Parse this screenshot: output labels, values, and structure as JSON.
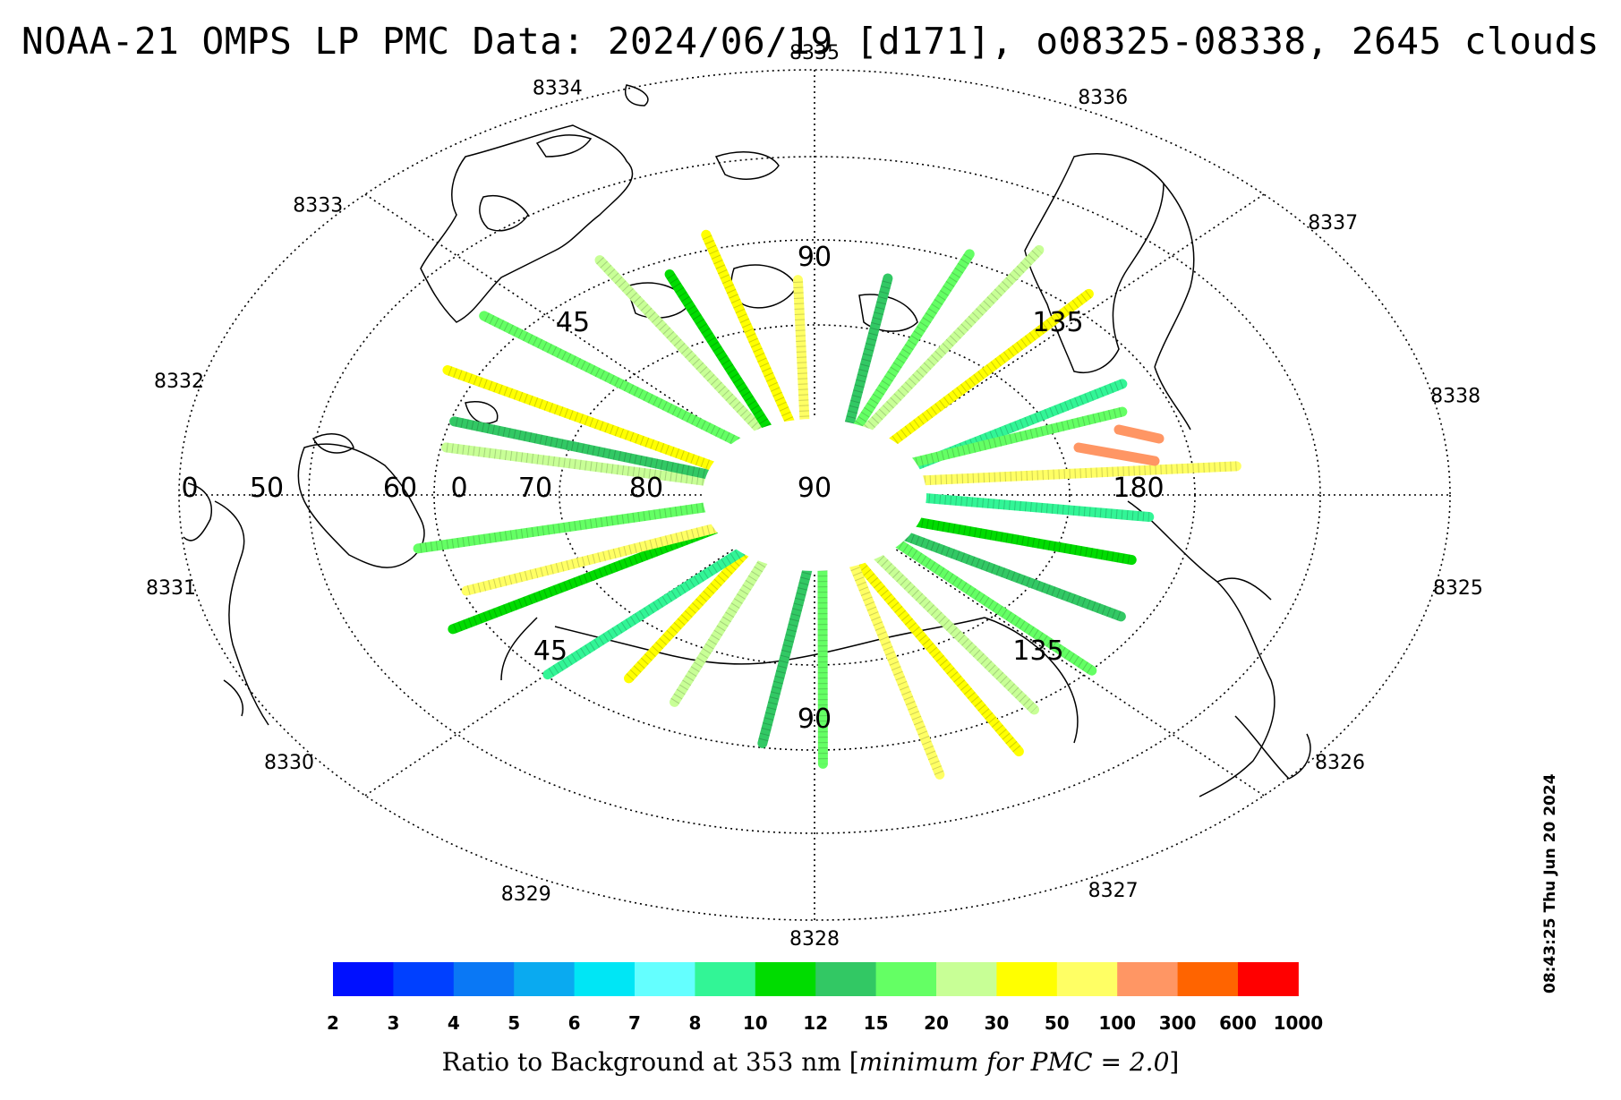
{
  "title": "NOAA-21 OMPS LP PMC Data: 2024/06/19 [d171], o08325-08338, 2645 clouds",
  "timestamp": "08:43:25 Thu Jun 20 2024",
  "orbit_labels": [
    {
      "text": "8325",
      "angle": 12
    },
    {
      "text": "8326",
      "angle": 37
    },
    {
      "text": "8327",
      "angle": 63
    },
    {
      "text": "8328",
      "angle": 90
    },
    {
      "text": "8329",
      "angle": 116
    },
    {
      "text": "8330",
      "angle": 143
    },
    {
      "text": "8331",
      "angle": 168
    },
    {
      "text": "8332",
      "angle": 195
    },
    {
      "text": "8333",
      "angle": 221
    },
    {
      "text": "8334",
      "angle": 247
    },
    {
      "text": "8335",
      "angle": 270
    },
    {
      "text": "8336",
      "angle": 296
    },
    {
      "text": "8337",
      "angle": 322
    },
    {
      "text": "8338",
      "angle": 347
    }
  ],
  "latitude_labels": [
    "0",
    "50",
    "60",
    "0",
    "70",
    "80",
    "90",
    "180",
    "45",
    "135",
    "45",
    "135",
    "90",
    "90"
  ],
  "colorbar": {
    "ticks": [
      "2",
      "3",
      "4",
      "5",
      "6",
      "7",
      "8",
      "10",
      "12",
      "15",
      "20",
      "30",
      "50",
      "100",
      "300",
      "600",
      "1000"
    ],
    "colors": [
      "#0010ff",
      "#0040ff",
      "#0a78f5",
      "#0aaaf0",
      "#00e6f5",
      "#64ffff",
      "#32f596",
      "#00dc00",
      "#32c864",
      "#64ff64",
      "#c8ff96",
      "#ffff00",
      "#ffff64",
      "#ff9664",
      "#ff6400",
      "#ff0000"
    ],
    "label_prefix": "Ratio to Background at 353 nm [",
    "label_italic": "minimum for PMC = 2.0",
    "label_suffix": "]"
  }
}
